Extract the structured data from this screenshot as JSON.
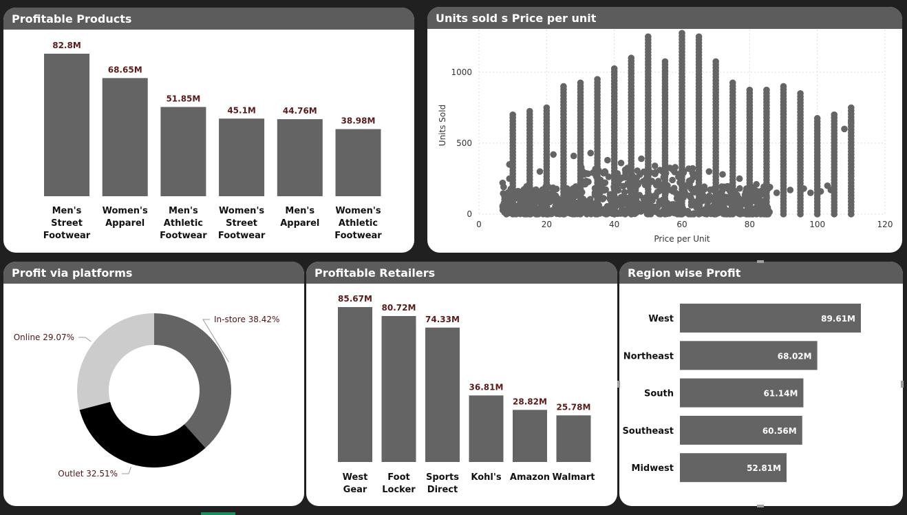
{
  "panels": {
    "products": {
      "title": "Profitable Products"
    },
    "scatter": {
      "title": "Units sold s Price per unit"
    },
    "platforms": {
      "title": "Profit via platforms"
    },
    "retailers": {
      "title": "Profitable Retailers"
    },
    "region": {
      "title": "Region wise Profit"
    }
  },
  "colors": {
    "bar": "#646464",
    "donut": [
      "#646464",
      "#000000",
      "#cccccc"
    ]
  },
  "chart_data": [
    {
      "id": "products",
      "type": "bar",
      "title": "Profitable Products",
      "categories": [
        [
          "Men's",
          "Street",
          "Footwear"
        ],
        [
          "Women's",
          "Apparel"
        ],
        [
          "Men's",
          "Athletic",
          "Footwear"
        ],
        [
          "Women's",
          "Street",
          "Footwear"
        ],
        [
          "Men's",
          "Apparel"
        ],
        [
          "Women's",
          "Athletic",
          "Footwear"
        ]
      ],
      "values": [
        82.8,
        68.65,
        51.85,
        45.1,
        44.76,
        38.98
      ],
      "labels": [
        "82.8M",
        "68.65M",
        "51.85M",
        "45.1M",
        "44.76M",
        "38.98M"
      ],
      "ylim": [
        0,
        82.8
      ]
    },
    {
      "id": "scatter",
      "type": "scatter",
      "title": "Units sold s Price per unit",
      "xlabel": "Price per Unit",
      "ylabel": "Units Sold",
      "xlim": [
        0,
        120
      ],
      "ylim": [
        0,
        1300
      ],
      "xticks": [
        0,
        20,
        40,
        60,
        80,
        100,
        120
      ],
      "yticks": [
        0,
        500,
        1000
      ],
      "grid": true,
      "columns": [
        {
          "x": 10,
          "max": 700
        },
        {
          "x": 15,
          "max": 725
        },
        {
          "x": 20,
          "max": 750
        },
        {
          "x": 25,
          "max": 900
        },
        {
          "x": 30,
          "max": 925
        },
        {
          "x": 35,
          "max": 950
        },
        {
          "x": 40,
          "max": 1025
        },
        {
          "x": 45,
          "max": 1100
        },
        {
          "x": 50,
          "max": 1250
        },
        {
          "x": 55,
          "max": 1075
        },
        {
          "x": 60,
          "max": 1275
        },
        {
          "x": 65,
          "max": 1250
        },
        {
          "x": 70,
          "max": 1075
        },
        {
          "x": 75,
          "max": 925
        },
        {
          "x": 80,
          "max": 875
        },
        {
          "x": 85,
          "max": 875
        },
        {
          "x": 90,
          "max": 900
        },
        {
          "x": 95,
          "max": 850
        },
        {
          "x": 100,
          "max": 675
        },
        {
          "x": 105,
          "max": 700
        },
        {
          "x": 110,
          "max": 750
        }
      ],
      "extra_points": [
        {
          "x": 7,
          "y": 220
        },
        {
          "x": 8,
          "y": 120
        },
        {
          "x": 9,
          "y": 350
        },
        {
          "x": 9,
          "y": 250
        },
        {
          "x": 18,
          "y": 300
        },
        {
          "x": 22,
          "y": 420
        },
        {
          "x": 28,
          "y": 410
        },
        {
          "x": 33,
          "y": 430
        },
        {
          "x": 38,
          "y": 380
        },
        {
          "x": 42,
          "y": 360
        },
        {
          "x": 48,
          "y": 390
        },
        {
          "x": 52,
          "y": 340
        },
        {
          "x": 58,
          "y": 330
        },
        {
          "x": 62,
          "y": 320
        },
        {
          "x": 68,
          "y": 300
        },
        {
          "x": 72,
          "y": 280
        },
        {
          "x": 77,
          "y": 250
        },
        {
          "x": 82,
          "y": 210
        },
        {
          "x": 86,
          "y": 190
        },
        {
          "x": 88,
          "y": 150
        },
        {
          "x": 92,
          "y": 170
        },
        {
          "x": 96,
          "y": 180
        },
        {
          "x": 98,
          "y": 150
        },
        {
          "x": 101,
          "y": 160
        },
        {
          "x": 103,
          "y": 200
        },
        {
          "x": 104,
          "y": 170
        },
        {
          "x": 108,
          "y": 600
        },
        {
          "x": 110,
          "y": 650
        }
      ]
    },
    {
      "id": "platforms",
      "type": "pie",
      "title": "Profit via platforms",
      "slices": [
        {
          "name": "In-store",
          "value": 38.42,
          "label": "In-store 38.42%"
        },
        {
          "name": "Outlet",
          "value": 32.51,
          "label": "Outlet 32.51%"
        },
        {
          "name": "Online",
          "value": 29.07,
          "label": "Online 29.07%"
        }
      ]
    },
    {
      "id": "retailers",
      "type": "bar",
      "title": "Profitable Retailers",
      "categories": [
        [
          "West",
          "Gear"
        ],
        [
          "Foot",
          "Locker"
        ],
        [
          "Sports",
          "Direct"
        ],
        [
          "Kohl's"
        ],
        [
          "Amazon"
        ],
        [
          "Walmart"
        ]
      ],
      "values": [
        85.67,
        80.72,
        74.33,
        36.81,
        28.82,
        25.78
      ],
      "labels": [
        "85.67M",
        "80.72M",
        "74.33M",
        "36.81M",
        "28.82M",
        "25.78M"
      ],
      "ylim": [
        0,
        85.67
      ]
    },
    {
      "id": "region",
      "type": "bar",
      "orientation": "horizontal",
      "title": "Region wise Profit",
      "categories": [
        "West",
        "Northeast",
        "South",
        "Southeast",
        "Midwest"
      ],
      "values": [
        89.61,
        68.02,
        61.14,
        60.56,
        52.81
      ],
      "labels": [
        "89.61M",
        "68.02M",
        "61.14M",
        "60.56M",
        "52.81M"
      ],
      "xlim": [
        0,
        89.61
      ]
    }
  ]
}
